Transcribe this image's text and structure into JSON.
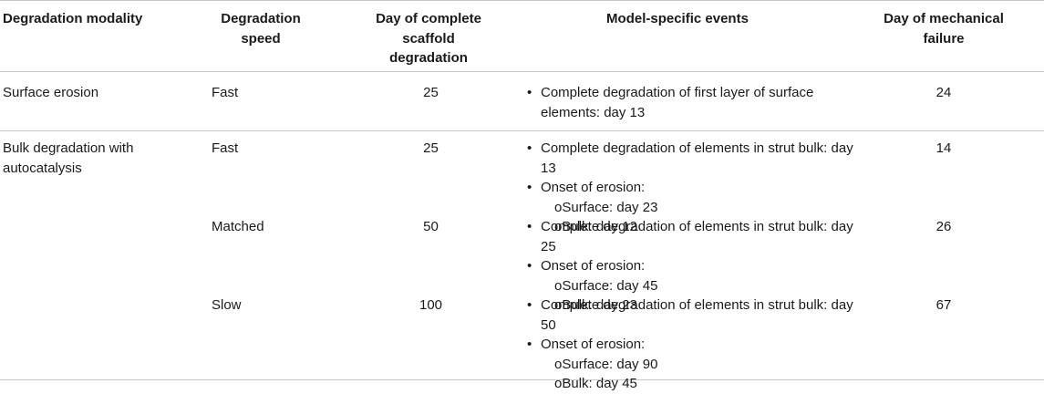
{
  "headers": {
    "modality": "Degradation modality",
    "speed": "Degradation\nspeed",
    "complete_day": "Day of complete\nscaffold\ndegradation",
    "events": "Model-specific events",
    "failure_day": "Day of mechanical\nfailure"
  },
  "rows": [
    {
      "modality": "Surface erosion",
      "speed": "Fast",
      "complete_day": "25",
      "events": [
        {
          "text": "Complete degradation of first layer of surface elements: day 13",
          "sub": []
        }
      ],
      "failure_day": "24"
    },
    {
      "modality": "Bulk degradation with autocatalysis",
      "speed": "Fast",
      "complete_day": "25",
      "events": [
        {
          "text": "Complete degradation of elements in strut bulk: day 13",
          "sub": []
        },
        {
          "text": "Onset of erosion:",
          "sub": [
            "oSurface: day 23",
            "oBulk: day 12"
          ]
        }
      ],
      "failure_day": "14"
    },
    {
      "modality": "",
      "speed": "Matched",
      "complete_day": "50",
      "events": [
        {
          "text": "Complete degradation of elements in strut bulk: day 25",
          "sub": []
        },
        {
          "text": "Onset of erosion:",
          "sub": [
            "oSurface: day 45",
            "oBulk: day 23"
          ]
        }
      ],
      "failure_day": "26"
    },
    {
      "modality": "",
      "speed": "Slow",
      "complete_day": "100",
      "events": [
        {
          "text": "Complete degradation of elements in strut bulk: day 50",
          "sub": []
        },
        {
          "text": "Onset of erosion:",
          "sub": [
            "oSurface: day 90",
            "oBulk: day 45"
          ]
        }
      ],
      "failure_day": "67"
    }
  ]
}
